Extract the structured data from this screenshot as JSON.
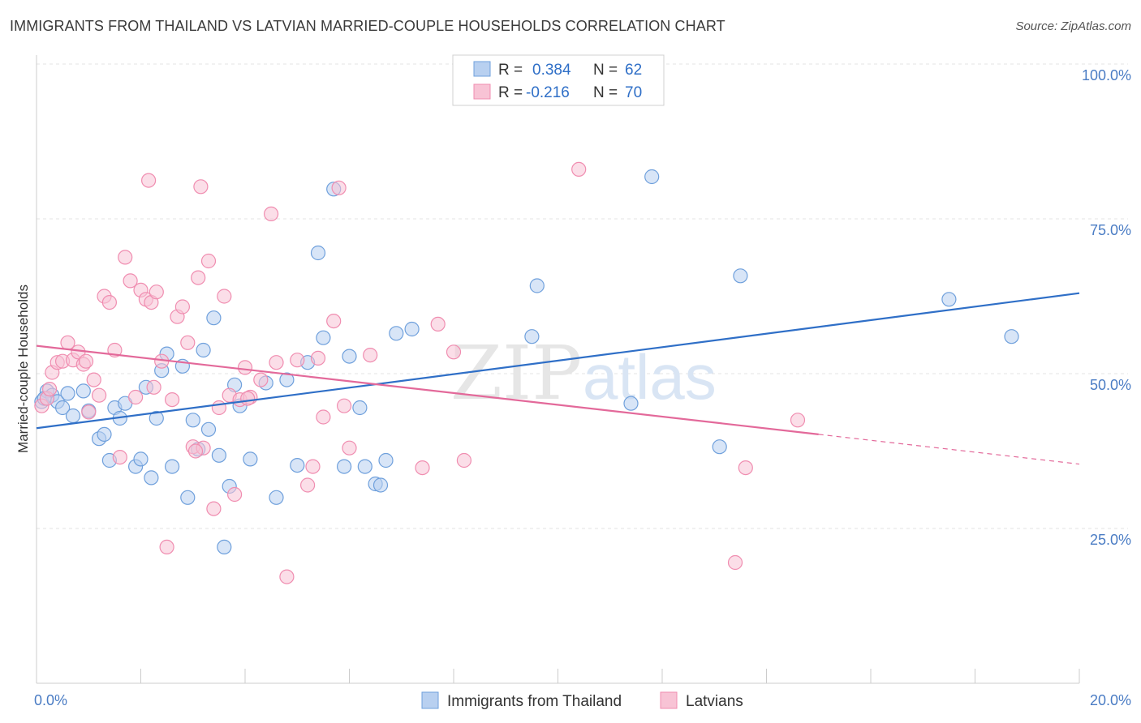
{
  "title": "IMMIGRANTS FROM THAILAND VS LATVIAN MARRIED-COUPLE HOUSEHOLDS CORRELATION CHART",
  "source": "Source: ZipAtlas.com",
  "watermark": {
    "zip": "ZIP",
    "atlas": "atlas"
  },
  "stats": [
    {
      "r_label": "R =",
      "r_value": "0.384",
      "n_label": "N =",
      "n_value": "62",
      "color": "#6fa0dc"
    },
    {
      "r_label": "R =",
      "r_value": "-0.216",
      "n_label": "N =",
      "n_value": "70",
      "color": "#f08db0"
    }
  ],
  "chart_data": {
    "type": "scatter",
    "ylabel": "Married-couple Households",
    "xlim": [
      0,
      20
    ],
    "ylim": [
      0,
      100
    ],
    "x_tick_labels": {
      "0": "0.0%",
      "20": "20.0%"
    },
    "y_tick_labels": {
      "25": "25.0%",
      "50": "50.0%",
      "75": "75.0%",
      "100": "100.0%"
    },
    "grid": true,
    "legend_position": "bottom",
    "series": [
      {
        "name": "Immigrants from Thailand",
        "color": "#6fa0dc",
        "fill": "#b8d0f0",
        "trend": {
          "x0": 0,
          "y0": 41.2,
          "x1": 20,
          "y1": 63.0,
          "color": "#2f6fc7"
        },
        "points": [
          [
            0.1,
            45.5
          ],
          [
            0.2,
            47.2
          ],
          [
            0.3,
            46.5
          ],
          [
            0.4,
            45.5
          ],
          [
            0.5,
            44.5
          ],
          [
            0.6,
            46.8
          ],
          [
            0.7,
            43.2
          ],
          [
            0.9,
            47.2
          ],
          [
            1.0,
            44.0
          ],
          [
            1.2,
            39.5
          ],
          [
            1.3,
            40.2
          ],
          [
            1.5,
            44.5
          ],
          [
            1.6,
            42.8
          ],
          [
            1.7,
            45.2
          ],
          [
            1.9,
            35.0
          ],
          [
            2.0,
            36.2
          ],
          [
            2.1,
            47.8
          ],
          [
            2.2,
            33.2
          ],
          [
            2.3,
            42.8
          ],
          [
            2.4,
            50.5
          ],
          [
            2.5,
            53.2
          ],
          [
            2.6,
            35.0
          ],
          [
            2.8,
            51.2
          ],
          [
            2.9,
            30.0
          ],
          [
            3.0,
            42.5
          ],
          [
            3.1,
            37.8
          ],
          [
            3.2,
            53.8
          ],
          [
            3.3,
            41.0
          ],
          [
            3.4,
            59.0
          ],
          [
            3.5,
            36.8
          ],
          [
            3.6,
            22.0
          ],
          [
            3.7,
            31.8
          ],
          [
            3.8,
            48.2
          ],
          [
            3.9,
            44.8
          ],
          [
            4.1,
            36.2
          ],
          [
            4.4,
            48.5
          ],
          [
            4.6,
            30.0
          ],
          [
            4.8,
            49.0
          ],
          [
            5.0,
            35.2
          ],
          [
            5.2,
            51.8
          ],
          [
            5.4,
            69.5
          ],
          [
            5.5,
            55.8
          ],
          [
            5.7,
            79.8
          ],
          [
            5.9,
            35.0
          ],
          [
            6.0,
            52.8
          ],
          [
            6.2,
            44.5
          ],
          [
            6.3,
            35.0
          ],
          [
            6.5,
            32.2
          ],
          [
            6.6,
            32.0
          ],
          [
            6.7,
            36.0
          ],
          [
            6.9,
            56.5
          ],
          [
            7.2,
            57.2
          ],
          [
            9.5,
            56.0
          ],
          [
            9.6,
            64.2
          ],
          [
            11.4,
            45.2
          ],
          [
            11.8,
            81.8
          ],
          [
            13.1,
            38.2
          ],
          [
            13.5,
            65.8
          ],
          [
            17.5,
            62.0
          ],
          [
            18.7,
            56.0
          ],
          [
            0.15,
            46.0
          ],
          [
            1.4,
            36.0
          ]
        ]
      },
      {
        "name": "Latvians",
        "color": "#f08db0",
        "fill": "#f8c3d5",
        "trend": {
          "x0": 0,
          "y0": 54.5,
          "x1": 15.0,
          "y1": 40.2,
          "x2": 20,
          "y2": 35.4,
          "color": "#e3699a"
        },
        "points": [
          [
            0.1,
            44.8
          ],
          [
            0.2,
            46.0
          ],
          [
            0.3,
            50.2
          ],
          [
            0.4,
            51.8
          ],
          [
            0.5,
            52.0
          ],
          [
            0.6,
            55.0
          ],
          [
            0.7,
            52.2
          ],
          [
            0.8,
            53.5
          ],
          [
            0.9,
            51.5
          ],
          [
            1.0,
            43.8
          ],
          [
            1.1,
            49.0
          ],
          [
            1.2,
            46.5
          ],
          [
            1.3,
            62.5
          ],
          [
            1.4,
            61.5
          ],
          [
            1.5,
            53.8
          ],
          [
            1.6,
            36.5
          ],
          [
            1.7,
            68.8
          ],
          [
            1.8,
            65.0
          ],
          [
            1.9,
            46.2
          ],
          [
            2.0,
            63.5
          ],
          [
            2.1,
            62.0
          ],
          [
            2.15,
            81.2
          ],
          [
            2.2,
            61.5
          ],
          [
            2.3,
            63.2
          ],
          [
            2.4,
            52.0
          ],
          [
            2.5,
            22.0
          ],
          [
            2.6,
            45.8
          ],
          [
            2.7,
            59.2
          ],
          [
            2.8,
            60.8
          ],
          [
            2.9,
            55.0
          ],
          [
            3.0,
            38.2
          ],
          [
            3.1,
            65.5
          ],
          [
            3.15,
            80.2
          ],
          [
            3.2,
            38.0
          ],
          [
            3.3,
            68.2
          ],
          [
            3.4,
            28.2
          ],
          [
            3.5,
            44.5
          ],
          [
            3.6,
            62.5
          ],
          [
            3.7,
            46.5
          ],
          [
            3.8,
            30.5
          ],
          [
            3.9,
            45.8
          ],
          [
            4.0,
            51.0
          ],
          [
            4.1,
            46.2
          ],
          [
            4.3,
            49.0
          ],
          [
            4.5,
            75.8
          ],
          [
            4.6,
            51.8
          ],
          [
            4.8,
            17.2
          ],
          [
            5.0,
            52.2
          ],
          [
            5.2,
            32.0
          ],
          [
            5.3,
            35.0
          ],
          [
            5.5,
            43.0
          ],
          [
            5.7,
            58.5
          ],
          [
            5.8,
            80.0
          ],
          [
            5.9,
            44.8
          ],
          [
            6.0,
            38.0
          ],
          [
            6.4,
            53.0
          ],
          [
            7.4,
            34.8
          ],
          [
            7.7,
            58.0
          ],
          [
            8.0,
            53.5
          ],
          [
            8.2,
            36.0
          ],
          [
            10.4,
            83.0
          ],
          [
            13.4,
            19.5
          ],
          [
            13.6,
            34.8
          ],
          [
            14.6,
            42.5
          ],
          [
            0.25,
            47.5
          ],
          [
            0.95,
            52.0
          ],
          [
            2.25,
            47.8
          ],
          [
            3.05,
            37.5
          ],
          [
            4.05,
            46.0
          ],
          [
            5.4,
            52.5
          ]
        ]
      }
    ]
  }
}
